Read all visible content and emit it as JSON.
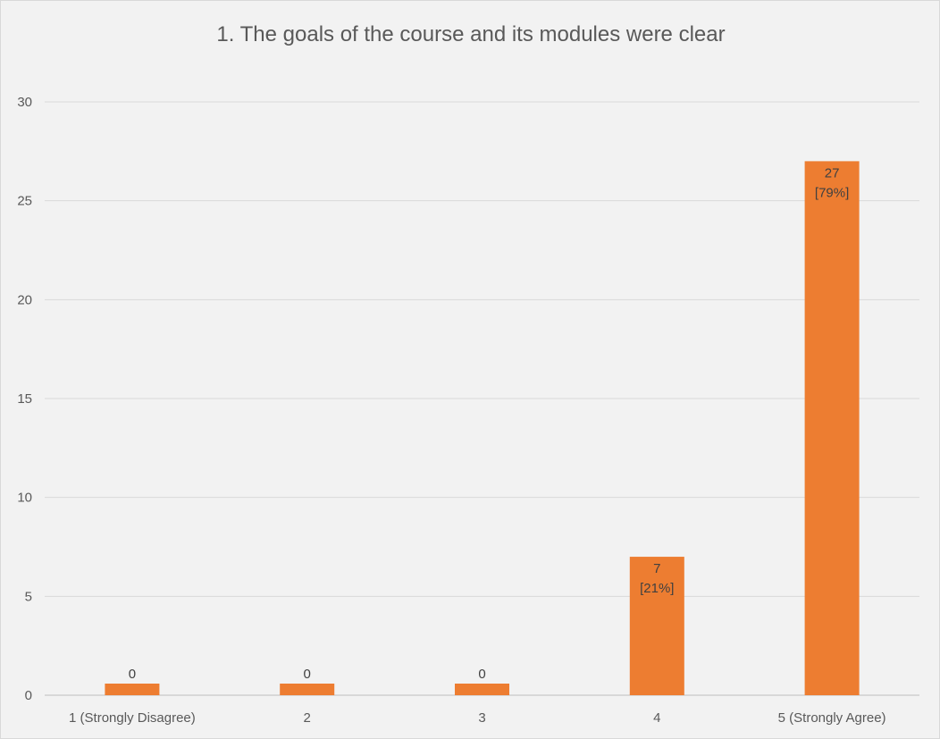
{
  "chart_data": {
    "type": "bar",
    "title": "1. The goals of the course and its modules were clear",
    "xlabel": "",
    "ylabel": "",
    "categories": [
      "1 (Strongly Disagree)",
      "2",
      "3",
      "4",
      "5 (Strongly Agree)"
    ],
    "values": [
      0,
      0,
      0,
      7,
      27
    ],
    "data_labels": [
      [
        "0"
      ],
      [
        "0"
      ],
      [
        "0"
      ],
      [
        "7",
        "[21%]"
      ],
      [
        "27",
        "[79%]"
      ]
    ],
    "ylim": [
      0,
      30
    ],
    "yticks": [
      0,
      5,
      10,
      15,
      20,
      25,
      30
    ],
    "grid": true,
    "legend": "none",
    "bar_color": "#ed7d31"
  }
}
